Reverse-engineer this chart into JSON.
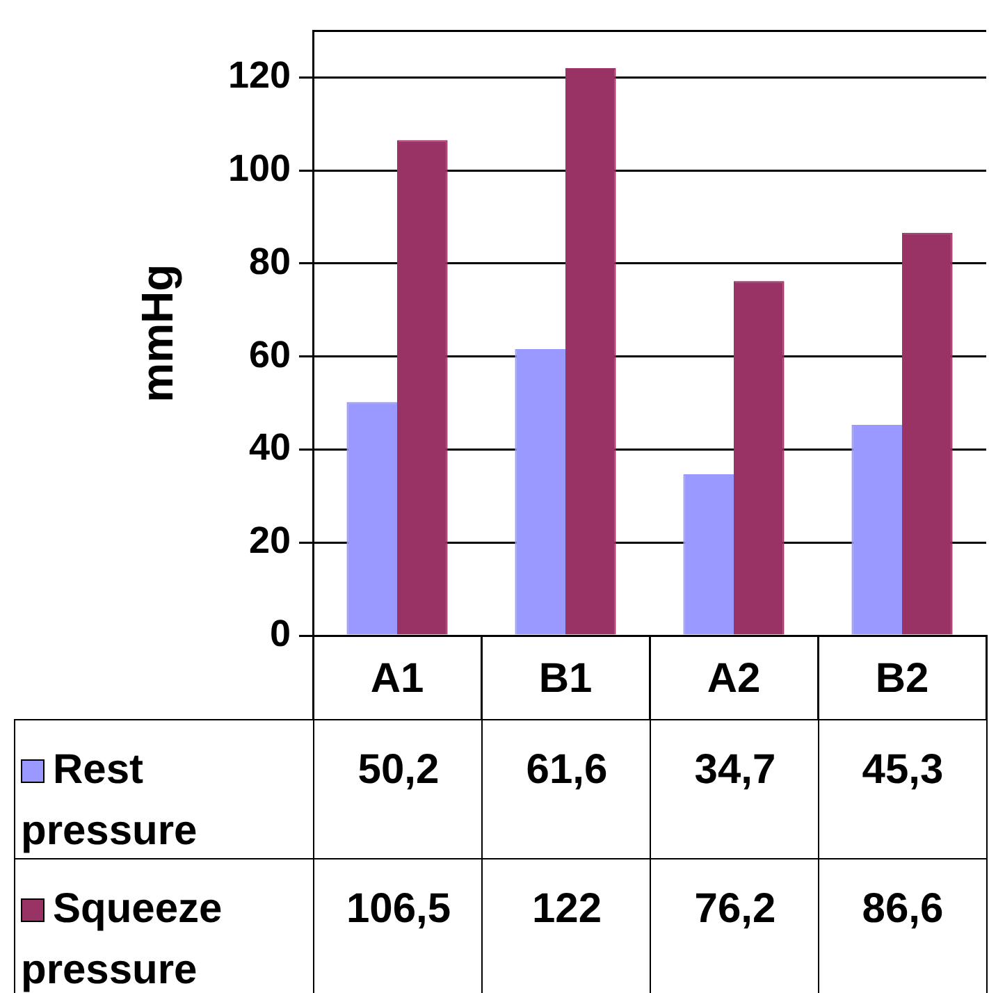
{
  "chart_data": {
    "type": "bar",
    "ylabel": "mmHg",
    "categories": [
      "A1",
      "B1",
      "A2",
      "B2"
    ],
    "series": [
      {
        "name": "Rest pressure",
        "color": "#9999ff",
        "values": [
          50.2,
          61.6,
          34.7,
          45.3
        ],
        "value_labels": [
          "50,2",
          "61,6",
          "34,7",
          "45,3"
        ]
      },
      {
        "name": "Squeeze pressure",
        "color": "#993366",
        "values": [
          106.5,
          122,
          76.2,
          86.6
        ],
        "value_labels": [
          "106,5",
          "122",
          "76,2",
          "86,6"
        ]
      }
    ],
    "ylim": [
      0,
      130
    ],
    "yticks": [
      0,
      20,
      40,
      60,
      80,
      100,
      120
    ],
    "grid": "y",
    "legend": "bottom"
  }
}
